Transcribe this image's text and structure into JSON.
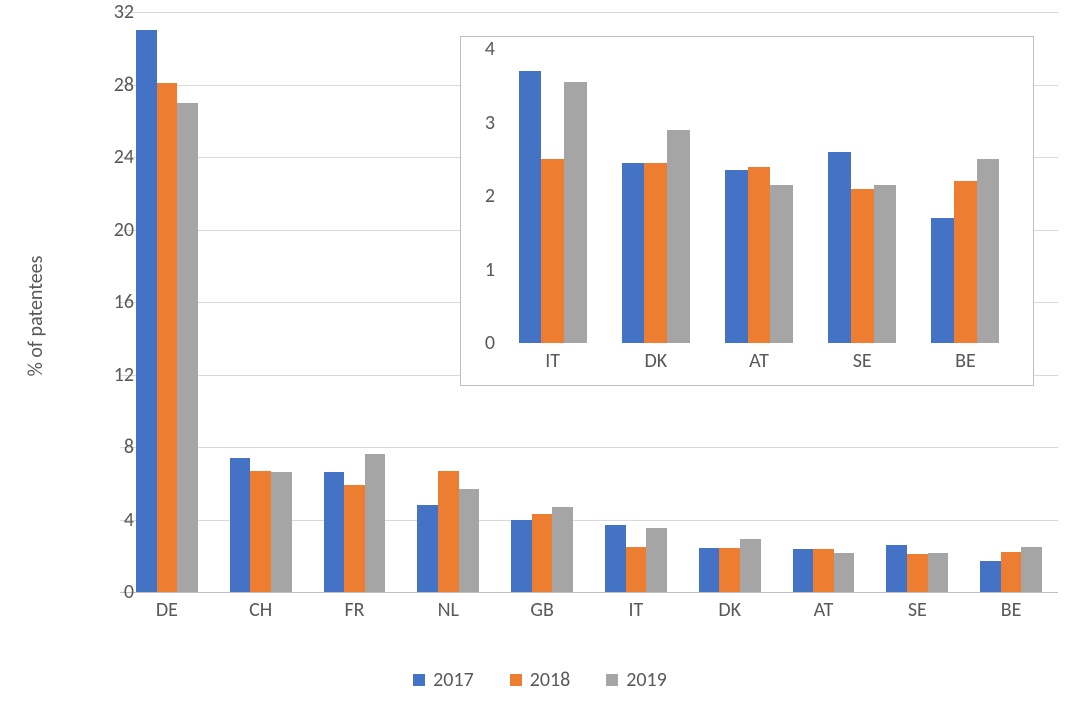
{
  "main": {
    "type": "bar",
    "ylabel": "% of patentees",
    "ylim": [
      0,
      32
    ],
    "ytick_step": 4,
    "background_color": "#ffffff",
    "grid_color": "#d9d9d9",
    "axis_color": "#bfbfbf",
    "tick_fontsize": 20,
    "tick_color": "#595959",
    "bar_width_ratio": 0.22,
    "categories": [
      "DE",
      "CH",
      "FR",
      "NL",
      "GB",
      "IT",
      "DK",
      "AT",
      "SE",
      "BE"
    ],
    "series": [
      {
        "name": "2017",
        "color": "#4472c4",
        "values": [
          31.0,
          7.4,
          6.6,
          4.8,
          4.0,
          3.7,
          2.45,
          2.35,
          2.6,
          1.7
        ]
      },
      {
        "name": "2018",
        "color": "#ed7d31",
        "values": [
          28.1,
          6.7,
          5.9,
          6.7,
          4.3,
          2.5,
          2.45,
          2.4,
          2.1,
          2.2
        ]
      },
      {
        "name": "2019",
        "color": "#a5a5a5",
        "values": [
          27.0,
          6.6,
          7.6,
          5.7,
          4.7,
          3.55,
          2.9,
          2.15,
          2.15,
          2.5
        ]
      }
    ]
  },
  "inset": {
    "type": "bar",
    "ylim": [
      0,
      4
    ],
    "ytick_step": 1,
    "categories": [
      "IT",
      "DK",
      "AT",
      "SE",
      "BE"
    ],
    "bar_width_ratio": 0.22,
    "series": [
      {
        "name": "2017",
        "color": "#4472c4",
        "values": [
          3.7,
          2.45,
          2.35,
          2.6,
          1.7
        ]
      },
      {
        "name": "2018",
        "color": "#ed7d31",
        "values": [
          2.5,
          2.45,
          2.4,
          2.1,
          2.2
        ]
      },
      {
        "name": "2019",
        "color": "#a5a5a5",
        "values": [
          3.55,
          2.9,
          2.15,
          2.15,
          2.5
        ]
      }
    ],
    "border_color": "#bfbfbf",
    "background_color": "#ffffff"
  },
  "legend": {
    "items": [
      {
        "label": "2017",
        "color": "#4472c4"
      },
      {
        "label": "2018",
        "color": "#ed7d31"
      },
      {
        "label": "2019",
        "color": "#a5a5a5"
      }
    ],
    "fontsize": 20,
    "text_color": "#595959"
  }
}
